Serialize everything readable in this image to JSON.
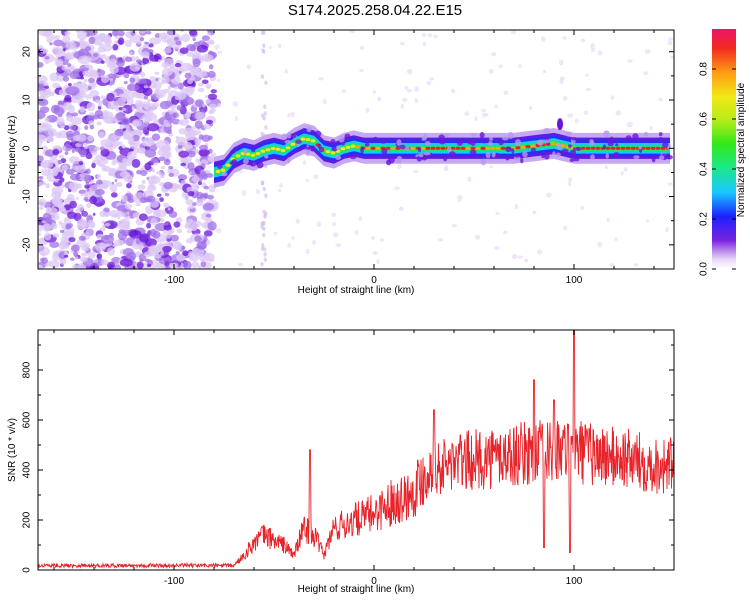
{
  "title": "S174.2025.258.04.22.E15",
  "colors": {
    "snr_line": "#e8232a",
    "scatter_low": "#7a2be0",
    "ridge_mid": "#29c7ff",
    "ridge_high": "#f01c2a",
    "axis": "#000000"
  },
  "chart_data": [
    {
      "id": "spectrogram",
      "type": "heatmap",
      "title": "",
      "xlabel": "Height of straight line (km)",
      "ylabel": "Frequency (Hz)",
      "xlim": [
        -168,
        150
      ],
      "ylim": [
        -25,
        24.5
      ],
      "xticks": [
        -100,
        0,
        100
      ],
      "yticks": [
        -20,
        -10,
        0,
        10,
        20
      ],
      "noise_region_x": [
        -168,
        -80
      ],
      "signal_start_x": -80,
      "ridge": {
        "description_x": [
          -80,
          -75,
          -70,
          -65,
          -60,
          -55,
          -50,
          -45,
          -40,
          -35,
          -30,
          -25,
          -20,
          -15,
          -10,
          -5,
          0,
          10,
          20,
          30,
          40,
          50,
          60,
          70,
          80,
          90,
          95,
          100,
          110,
          120,
          130,
          140,
          148
        ],
        "frequency": [
          -5,
          -4.5,
          -2,
          -1,
          -1.5,
          -0.5,
          0,
          -0.5,
          1,
          2,
          1.5,
          -0.5,
          -1,
          0,
          0.5,
          0,
          0,
          0,
          0,
          0,
          0,
          0,
          0,
          0,
          0.5,
          1,
          0.5,
          0,
          0,
          0,
          0,
          0,
          0
        ]
      },
      "colorbar": {
        "label": "Normalized spectral amplitude",
        "ticks": [
          0.0,
          0.2,
          0.4,
          0.6,
          0.8
        ],
        "tick_labels": [
          "0.0",
          "0.2",
          "0.4",
          "0.6",
          "0.8"
        ],
        "range": [
          0,
          0.96
        ]
      }
    },
    {
      "id": "snr",
      "type": "line",
      "title": "",
      "xlabel": "Height of straight line (km)",
      "ylabel": "SNR (10 * v/v)",
      "xlim": [
        -168,
        150
      ],
      "ylim": [
        0,
        960
      ],
      "xticks": [
        -100,
        0,
        100
      ],
      "yticks": [
        0,
        200,
        400,
        600,
        800
      ],
      "series": [
        {
          "name": "SNR",
          "envelope_x": [
            -168,
            -70,
            -65,
            -60,
            -55,
            -50,
            -45,
            -40,
            -35,
            -30,
            -25,
            -20,
            -15,
            -10,
            -5,
            0,
            5,
            10,
            15,
            20,
            25,
            30,
            40,
            50,
            60,
            70,
            80,
            90,
            100,
            110,
            120,
            130,
            140,
            150
          ],
          "envelope_mean": [
            18,
            18,
            60,
            110,
            140,
            120,
            100,
            60,
            170,
            140,
            60,
            170,
            180,
            200,
            210,
            230,
            250,
            280,
            290,
            320,
            380,
            400,
            430,
            440,
            450,
            460,
            470,
            470,
            480,
            460,
            450,
            440,
            420,
            420
          ],
          "spikes": [
            {
              "x": -32,
              "y": 480
            },
            {
              "x": 30,
              "y": 30
            },
            {
              "x": 30,
              "y": 640
            },
            {
              "x": 80,
              "y": 760
            },
            {
              "x": 85,
              "y": 90
            },
            {
              "x": 90,
              "y": 680
            },
            {
              "x": 100,
              "y": 960
            },
            {
              "x": 98,
              "y": 70
            }
          ]
        }
      ]
    }
  ]
}
